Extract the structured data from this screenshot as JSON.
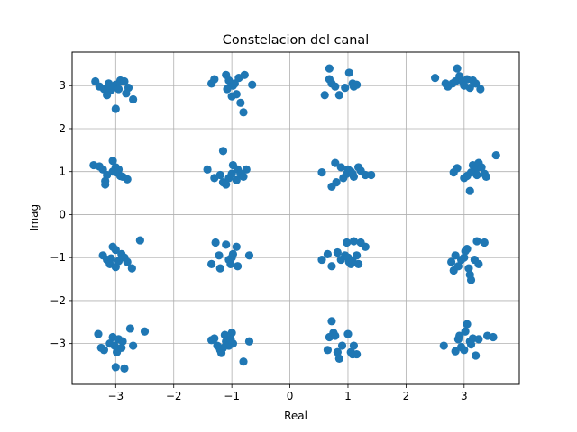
{
  "chart_data": {
    "type": "scatter",
    "title": "Constelacion del canal",
    "xlabel": "Real",
    "ylabel": "Imag",
    "xlim": [
      -3.75,
      3.95
    ],
    "ylim": [
      -3.95,
      3.78
    ],
    "xticks": [
      -3,
      -2,
      -1,
      0,
      1,
      2,
      3
    ],
    "yticks": [
      -3,
      -2,
      -1,
      0,
      1,
      2,
      3
    ],
    "xtick_labels": [
      "−3",
      "−2",
      "−1",
      "0",
      "1",
      "2",
      "3"
    ],
    "ytick_labels": [
      "−3",
      "−2",
      "−1",
      "0",
      "1",
      "2",
      "3"
    ],
    "grid": true,
    "marker_color": "#1f77b4",
    "series": [
      {
        "points": [
          [
            -3.35,
            3.1
          ],
          [
            -3.28,
            2.98
          ],
          [
            -3.2,
            2.92
          ],
          [
            -3.12,
            3.05
          ],
          [
            -3.08,
            2.9
          ],
          [
            -3.15,
            2.78
          ],
          [
            -3.0,
            3.02
          ],
          [
            -2.92,
            3.12
          ],
          [
            -2.85,
            3.1
          ],
          [
            -2.78,
            2.95
          ],
          [
            -2.82,
            2.82
          ],
          [
            -2.7,
            2.68
          ],
          [
            -3.0,
            2.46
          ],
          [
            -3.1,
            3.0
          ],
          [
            -2.95,
            2.92
          ],
          [
            -1.35,
            3.05
          ],
          [
            -1.3,
            3.15
          ],
          [
            -1.1,
            3.25
          ],
          [
            -1.05,
            3.12
          ],
          [
            -0.98,
            3.0
          ],
          [
            -1.08,
            2.92
          ],
          [
            -0.88,
            3.18
          ],
          [
            -0.78,
            3.25
          ],
          [
            -0.92,
            2.8
          ],
          [
            -0.85,
            2.6
          ],
          [
            -0.8,
            2.38
          ],
          [
            -0.65,
            3.02
          ],
          [
            -1.0,
            2.75
          ],
          [
            -0.95,
            3.05
          ],
          [
            0.6,
            2.78
          ],
          [
            0.68,
            3.4
          ],
          [
            0.72,
            3.05
          ],
          [
            0.78,
            2.98
          ],
          [
            0.85,
            2.78
          ],
          [
            0.68,
            3.15
          ],
          [
            1.02,
            3.3
          ],
          [
            1.08,
            3.05
          ],
          [
            1.15,
            3.02
          ],
          [
            0.95,
            2.95
          ],
          [
            1.1,
            2.98
          ],
          [
            2.5,
            3.18
          ],
          [
            2.68,
            3.05
          ],
          [
            2.72,
            2.98
          ],
          [
            2.8,
            3.05
          ],
          [
            2.88,
            3.4
          ],
          [
            2.92,
            3.22
          ],
          [
            2.98,
            3.08
          ],
          [
            3.05,
            3.15
          ],
          [
            3.1,
            2.95
          ],
          [
            3.15,
            3.12
          ],
          [
            3.2,
            3.05
          ],
          [
            3.28,
            2.92
          ],
          [
            3.0,
            3.0
          ],
          [
            2.85,
            3.1
          ],
          [
            -3.38,
            1.15
          ],
          [
            -3.28,
            1.12
          ],
          [
            -3.22,
            1.05
          ],
          [
            -3.15,
            0.92
          ],
          [
            -3.18,
            0.78
          ],
          [
            -3.18,
            0.7
          ],
          [
            -3.05,
            1.25
          ],
          [
            -3.0,
            1.1
          ],
          [
            -2.98,
            0.98
          ],
          [
            -2.92,
            0.9
          ],
          [
            -2.88,
            0.88
          ],
          [
            -2.8,
            0.82
          ],
          [
            -3.05,
            1.0
          ],
          [
            -2.95,
            1.05
          ],
          [
            -1.42,
            1.05
          ],
          [
            -1.3,
            0.85
          ],
          [
            -1.15,
            1.48
          ],
          [
            -1.2,
            0.92
          ],
          [
            -1.15,
            0.75
          ],
          [
            -1.1,
            0.7
          ],
          [
            -1.05,
            0.85
          ],
          [
            -0.98,
            1.15
          ],
          [
            -0.9,
            1.05
          ],
          [
            -0.85,
            0.95
          ],
          [
            -0.8,
            0.88
          ],
          [
            -0.75,
            1.05
          ],
          [
            -1.0,
            0.95
          ],
          [
            -0.92,
            0.8
          ],
          [
            0.55,
            0.98
          ],
          [
            0.72,
            0.65
          ],
          [
            0.8,
            0.75
          ],
          [
            0.78,
            1.2
          ],
          [
            0.88,
            1.1
          ],
          [
            0.92,
            0.85
          ],
          [
            0.98,
            0.95
          ],
          [
            1.05,
            1.0
          ],
          [
            1.1,
            0.88
          ],
          [
            1.18,
            1.1
          ],
          [
            1.22,
            1.02
          ],
          [
            1.3,
            0.92
          ],
          [
            1.4,
            0.92
          ],
          [
            1.0,
            1.05
          ],
          [
            1.08,
            0.95
          ],
          [
            2.82,
            0.98
          ],
          [
            2.88,
            1.08
          ],
          [
            3.0,
            0.85
          ],
          [
            3.05,
            0.9
          ],
          [
            3.1,
            0.55
          ],
          [
            3.15,
            1.15
          ],
          [
            3.2,
            1.05
          ],
          [
            3.22,
            0.92
          ],
          [
            3.25,
            1.2
          ],
          [
            3.3,
            1.1
          ],
          [
            3.35,
            0.95
          ],
          [
            3.38,
            0.88
          ],
          [
            3.55,
            1.38
          ],
          [
            3.12,
            0.98
          ],
          [
            -3.22,
            -0.95
          ],
          [
            -3.15,
            -1.05
          ],
          [
            -3.1,
            -1.15
          ],
          [
            -3.05,
            -0.75
          ],
          [
            -3.0,
            -0.82
          ],
          [
            -3.0,
            -1.22
          ],
          [
            -2.9,
            -0.92
          ],
          [
            -2.85,
            -1.0
          ],
          [
            -2.8,
            -1.1
          ],
          [
            -2.72,
            -1.25
          ],
          [
            -2.58,
            -0.6
          ],
          [
            -3.08,
            -1.02
          ],
          [
            -2.95,
            -1.08
          ],
          [
            -1.35,
            -1.15
          ],
          [
            -1.28,
            -0.65
          ],
          [
            -1.22,
            -0.95
          ],
          [
            -1.2,
            -1.25
          ],
          [
            -1.1,
            -0.7
          ],
          [
            -1.05,
            -1.05
          ],
          [
            -1.02,
            -1.15
          ],
          [
            -0.98,
            -0.92
          ],
          [
            -0.92,
            -0.75
          ],
          [
            -0.9,
            -1.2
          ],
          [
            -0.7,
            -0.95
          ],
          [
            -1.0,
            -1.0
          ],
          [
            0.55,
            -1.05
          ],
          [
            0.65,
            -0.92
          ],
          [
            0.72,
            -1.2
          ],
          [
            0.82,
            -0.88
          ],
          [
            0.88,
            -1.05
          ],
          [
            0.95,
            -0.95
          ],
          [
            0.98,
            -0.65
          ],
          [
            1.02,
            -1.1
          ],
          [
            1.05,
            -1.15
          ],
          [
            1.1,
            -0.62
          ],
          [
            1.15,
            -0.95
          ],
          [
            1.18,
            -1.15
          ],
          [
            1.22,
            -0.65
          ],
          [
            1.3,
            -0.75
          ],
          [
            1.0,
            -1.0
          ],
          [
            1.08,
            -1.08
          ],
          [
            2.78,
            -1.1
          ],
          [
            2.82,
            -1.3
          ],
          [
            2.85,
            -0.95
          ],
          [
            2.9,
            -1.2
          ],
          [
            2.95,
            -1.05
          ],
          [
            3.0,
            -1.0
          ],
          [
            3.02,
            -0.85
          ],
          [
            3.05,
            -0.8
          ],
          [
            3.1,
            -1.4
          ],
          [
            3.12,
            -1.52
          ],
          [
            3.18,
            -1.05
          ],
          [
            3.22,
            -0.62
          ],
          [
            3.25,
            -1.15
          ],
          [
            3.35,
            -0.65
          ],
          [
            3.08,
            -1.25
          ],
          [
            -3.3,
            -2.78
          ],
          [
            -3.25,
            -3.1
          ],
          [
            -3.2,
            -3.15
          ],
          [
            -3.05,
            -2.85
          ],
          [
            -3.02,
            -3.05
          ],
          [
            -3.0,
            -3.55
          ],
          [
            -2.98,
            -3.2
          ],
          [
            -2.95,
            -2.9
          ],
          [
            -2.9,
            -3.1
          ],
          [
            -2.88,
            -2.95
          ],
          [
            -2.85,
            -3.58
          ],
          [
            -2.75,
            -2.65
          ],
          [
            -2.7,
            -3.05
          ],
          [
            -2.5,
            -2.72
          ],
          [
            -3.1,
            -3.0
          ],
          [
            -1.35,
            -2.92
          ],
          [
            -1.3,
            -2.88
          ],
          [
            -1.25,
            -3.05
          ],
          [
            -1.2,
            -3.15
          ],
          [
            -1.18,
            -3.22
          ],
          [
            -1.12,
            -2.8
          ],
          [
            -1.1,
            -2.95
          ],
          [
            -1.05,
            -3.05
          ],
          [
            -1.0,
            -2.75
          ],
          [
            -0.98,
            -3.0
          ],
          [
            -0.8,
            -3.42
          ],
          [
            -0.7,
            -2.95
          ],
          [
            -1.15,
            -3.1
          ],
          [
            -1.02,
            -2.9
          ],
          [
            0.65,
            -3.15
          ],
          [
            0.68,
            -2.85
          ],
          [
            0.72,
            -2.48
          ],
          [
            0.75,
            -2.75
          ],
          [
            0.82,
            -3.2
          ],
          [
            0.85,
            -3.35
          ],
          [
            0.9,
            -3.05
          ],
          [
            1.0,
            -2.78
          ],
          [
            1.05,
            -3.2
          ],
          [
            1.08,
            -3.25
          ],
          [
            1.1,
            -3.05
          ],
          [
            1.15,
            -3.25
          ],
          [
            0.78,
            -2.82
          ],
          [
            2.65,
            -3.05
          ],
          [
            2.85,
            -3.18
          ],
          [
            2.9,
            -2.9
          ],
          [
            2.92,
            -2.82
          ],
          [
            2.95,
            -3.08
          ],
          [
            3.0,
            -3.15
          ],
          [
            3.02,
            -2.72
          ],
          [
            3.05,
            -2.55
          ],
          [
            3.1,
            -2.95
          ],
          [
            3.15,
            -2.88
          ],
          [
            3.2,
            -3.28
          ],
          [
            3.25,
            -2.9
          ],
          [
            3.4,
            -2.82
          ],
          [
            3.5,
            -2.85
          ],
          [
            3.12,
            -3.02
          ]
        ]
      }
    ]
  }
}
